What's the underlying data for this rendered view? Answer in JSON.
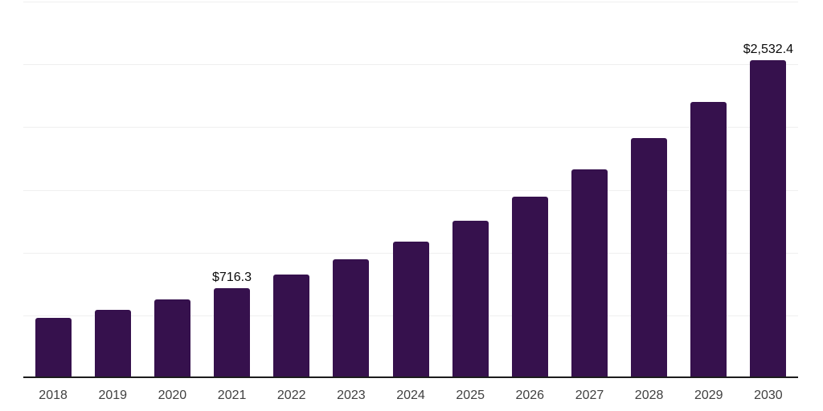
{
  "chart_data": {
    "type": "bar",
    "title": "",
    "xlabel": "",
    "ylabel": "",
    "categories": [
      "2018",
      "2019",
      "2020",
      "2021",
      "2022",
      "2023",
      "2024",
      "2025",
      "2026",
      "2027",
      "2028",
      "2029",
      "2030"
    ],
    "values": [
      477,
      543,
      625,
      716.3,
      824,
      948,
      1090,
      1254,
      1444,
      1661,
      1910,
      2199,
      2532.4
    ],
    "bar_labels": [
      "",
      "",
      "",
      "$716.3",
      "",
      "",
      "",
      "",
      "",
      "",
      "",
      "",
      "$2,532.4"
    ],
    "ylim": [
      0,
      3000
    ],
    "gridline_step": 500,
    "grid": true,
    "legend": false,
    "colors": {
      "bar": "#36114D",
      "gridline": "#efefef",
      "axis_line": "#1c1c1c",
      "tick_label": "#404040",
      "data_label": "#0a0a0a",
      "background": "#ffffff"
    }
  }
}
